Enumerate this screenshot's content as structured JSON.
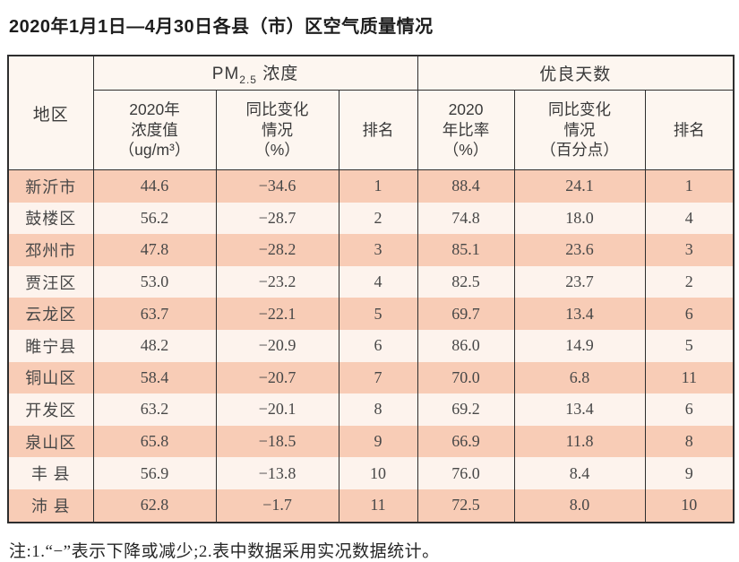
{
  "title": "2020年1月1日—4月30日各县（市）区空气质量情况",
  "colors": {
    "stripe_salmon": "#f8ccb6",
    "stripe_cream": "#fdf3ed",
    "header_bg": "#fdf6f0",
    "border": "#2e2e2e"
  },
  "table": {
    "header": {
      "region": "地区",
      "pm_group": {
        "prefix": "PM",
        "sub": "2.5",
        "suffix": " 浓度"
      },
      "good_group": "优良天数",
      "sub_headers": {
        "pm_value": "2020年\n浓度值\n（ug/m³）",
        "pm_change": "同比变化\n情况\n（%）",
        "pm_rank": "排名",
        "good_rate": "2020\n年比率\n（%）",
        "good_change": "同比变化\n情况\n（百分点）",
        "good_rank": "排名"
      }
    },
    "column_names": [
      "region",
      "pm-value",
      "pm-change",
      "pm-rank",
      "good-rate",
      "good-change",
      "good-rank"
    ],
    "rows": [
      [
        "新沂市",
        "44.6",
        "−34.6",
        "1",
        "88.4",
        "24.1",
        "1"
      ],
      [
        "鼓楼区",
        "56.2",
        "−28.7",
        "2",
        "74.8",
        "18.0",
        "4"
      ],
      [
        "邳州市",
        "47.8",
        "−28.2",
        "3",
        "85.1",
        "23.6",
        "3"
      ],
      [
        "贾汪区",
        "53.0",
        "−23.2",
        "4",
        "82.5",
        "23.7",
        "2"
      ],
      [
        "云龙区",
        "63.7",
        "−22.1",
        "5",
        "69.7",
        "13.4",
        "6"
      ],
      [
        "睢宁县",
        "48.2",
        "−20.9",
        "6",
        "86.0",
        "14.9",
        "5"
      ],
      [
        "铜山区",
        "58.4",
        "−20.7",
        "7",
        "70.0",
        "6.8",
        "11"
      ],
      [
        "开发区",
        "63.2",
        "−20.1",
        "8",
        "69.2",
        "13.4",
        "6"
      ],
      [
        "泉山区",
        "65.8",
        "−18.5",
        "9",
        "66.9",
        "11.8",
        "8"
      ],
      [
        "丰 县",
        "56.9",
        "−13.8",
        "10",
        "76.0",
        "8.4",
        "9"
      ],
      [
        "沛 县",
        "62.8",
        "−1.7",
        "11",
        "72.5",
        "8.0",
        "10"
      ]
    ]
  },
  "note": "注:1.“−”表示下降或减少;2.表中数据采用实况数据统计。"
}
